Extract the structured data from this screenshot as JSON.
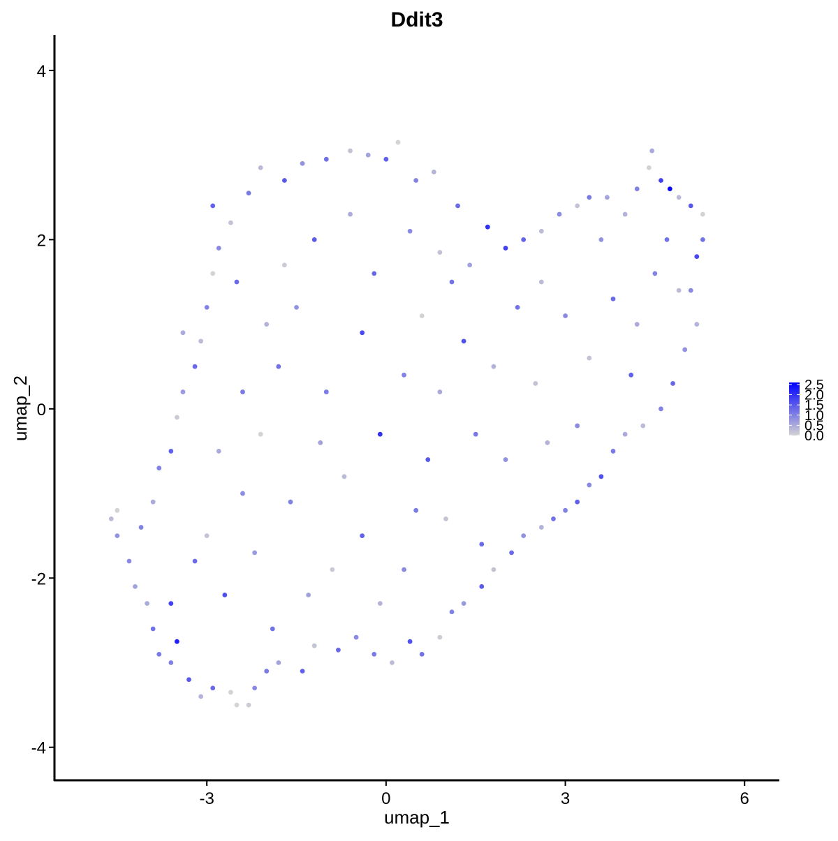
{
  "chart_data": {
    "type": "scatter",
    "title": "Ddit3",
    "x_label": "umap_1",
    "y_label": "umap_2",
    "xlim": [
      -5.55,
      6.57
    ],
    "ylim": [
      -4.39,
      4.42
    ],
    "xticks": [
      -3,
      0,
      3,
      6
    ],
    "yticks": [
      -4,
      -2,
      0,
      2,
      4
    ],
    "low_color": "#d3d3d3",
    "high_color": "#0000ff",
    "color_lim": [
      0,
      2.6
    ],
    "color_ticks": [
      {
        "value": 0,
        "label": "0.0"
      },
      0.5,
      {
        "value": 1,
        "label": "1.0"
      },
      1.5,
      {
        "value": 2,
        "label": "2.0"
      },
      2.5
    ],
    "x": [
      -4.6,
      -4.5,
      -4.5,
      -4.3,
      -4.1,
      -4.2,
      -4.0,
      -3.9,
      -3.8,
      -3.6,
      -3.5,
      -3.3,
      -3.1,
      -2.9,
      -2.6,
      -2.5,
      -2.3,
      -2.2,
      -2.0,
      -1.8,
      -1.4,
      -1.2,
      -0.8,
      -0.5,
      -0.2,
      0.1,
      0.4,
      0.6,
      0.9,
      1.1,
      1.3,
      1.6,
      1.8,
      2.1,
      2.3,
      2.6,
      2.8,
      3.0,
      3.2,
      3.4,
      3.6,
      3.8,
      4.0,
      4.3,
      4.6,
      4.8,
      5.0,
      5.2,
      5.1,
      5.2,
      5.3,
      5.3,
      5.1,
      4.9,
      4.75,
      4.6,
      4.45,
      4.4,
      4.2,
      4.0,
      3.7,
      3.4,
      3.2,
      2.9,
      2.6,
      2.3,
      2.0,
      1.7,
      1.4,
      1.1,
      0.9,
      1.2,
      0.8,
      0.5,
      0.2,
      0,
      -0.3,
      -0.6,
      -1.0,
      -1.4,
      -1.7,
      -2.1,
      -2.3,
      -2.6,
      -2.8,
      -2.9,
      -3.0,
      -3.1,
      -3.2,
      -3.4,
      -3.5,
      -3.6,
      -3.8,
      -3.9,
      -3.0,
      -2.7,
      -2.4,
      -2.1,
      -1.8,
      -1.5,
      -1.2,
      -2.5,
      -2.0,
      -1.0,
      -0.7,
      -0.4,
      -1.3,
      -1.9,
      -0.1,
      0.3,
      0.6,
      -0.2,
      -0.6,
      0.4,
      0.7,
      1.0,
      0.3,
      -0.9,
      1.5,
      1.8,
      2.2,
      2.6,
      3.0,
      3.4,
      3.8,
      4.2,
      4.5,
      4.1,
      2.5,
      2.0,
      2.7,
      3.2,
      1.3,
      -2.8,
      -3.2,
      -3.6,
      -2.2,
      -1.6,
      -1.1,
      -2.4,
      -1.7,
      -0.4,
      0.9,
      1.6,
      -0.1,
      0.5,
      -3.4,
      -2.9,
      4.7,
      4.9,
      3.6
    ],
    "y": [
      -1.3,
      -1.2,
      -1.5,
      -1.8,
      -1.4,
      -2.1,
      -2.3,
      -2.6,
      -2.9,
      -3.0,
      -2.75,
      -3.2,
      -3.4,
      -3.3,
      -3.35,
      -3.5,
      -3.5,
      -3.3,
      -3.1,
      -3.0,
      -3.1,
      -2.8,
      -2.85,
      -2.7,
      -2.9,
      -3.0,
      -2.75,
      -2.9,
      -2.7,
      -2.4,
      -2.3,
      -2.1,
      -1.9,
      -1.7,
      -1.5,
      -1.4,
      -1.3,
      -1.2,
      -1.1,
      -0.9,
      -0.8,
      -0.5,
      -0.3,
      -0.2,
      0.0,
      0.3,
      0.7,
      1.0,
      1.4,
      1.8,
      2.0,
      2.3,
      2.4,
      2.5,
      2.6,
      2.7,
      3.05,
      2.85,
      2.6,
      2.3,
      2.5,
      2.5,
      2.4,
      2.3,
      2.1,
      2.0,
      1.9,
      2.15,
      1.7,
      1.5,
      1.85,
      2.4,
      2.8,
      2.7,
      3.15,
      2.95,
      3.0,
      3.05,
      2.95,
      2.9,
      2.7,
      2.85,
      2.55,
      2.2,
      1.9,
      1.6,
      1.2,
      0.8,
      0.5,
      0.2,
      -0.1,
      -0.5,
      -0.7,
      -1.1,
      -1.5,
      -2.2,
      -1.0,
      -0.3,
      0.5,
      1.2,
      2.0,
      1.5,
      1.0,
      0.2,
      -0.8,
      -1.5,
      -2.2,
      -2.6,
      -0.3,
      0.4,
      1.1,
      1.6,
      2.3,
      2.1,
      -0.6,
      -1.3,
      -1.9,
      -1.9,
      -0.3,
      0.5,
      1.2,
      1.5,
      1.1,
      0.6,
      1.3,
      1.0,
      1.6,
      0.4,
      0.3,
      -0.6,
      -0.4,
      -0.2,
      0.8,
      -0.5,
      -1.8,
      -2.3,
      -1.7,
      -1.1,
      -0.4,
      0.2,
      1.7,
      0.9,
      0.2,
      -1.6,
      -2.3,
      -1.2,
      0.9,
      2.4,
      2.0,
      1.4,
      2.0
    ],
    "expression": [
      0.3,
      0,
      0.8,
      0.9,
      1.0,
      0.6,
      0.5,
      1.2,
      1.1,
      1.0,
      2.2,
      1.5,
      0.4,
      1.3,
      0,
      0,
      0.1,
      0.9,
      1.1,
      0.6,
      1.4,
      0.2,
      1.3,
      0.9,
      1.1,
      0.3,
      1.6,
      1.2,
      0.1,
      1.0,
      0.7,
      1.5,
      0.2,
      1.3,
      0.8,
      0.4,
      1.2,
      1.0,
      1.4,
      0.9,
      1.6,
      1.1,
      0.5,
      0.3,
      1.0,
      1.3,
      0.8,
      0.4,
      0.9,
      1.7,
      1.2,
      0,
      1.5,
      0.3,
      2.5,
      1.8,
      0.5,
      0,
      1.0,
      0.4,
      0.6,
      1.1,
      0.2,
      0.9,
      0.3,
      1.4,
      1.8,
      2.0,
      0.6,
      1.2,
      0.2,
      1.3,
      0.4,
      1.0,
      0,
      1.4,
      0.6,
      0.2,
      1.2,
      0.8,
      1.5,
      0.3,
      1.1,
      0.2,
      0.9,
      0,
      1.0,
      0.3,
      1.3,
      0.7,
      0.1,
      1.4,
      1.0,
      0.5,
      0.2,
      1.6,
      0.9,
      0,
      1.2,
      0.8,
      1.5,
      1.3,
      0.4,
      1.1,
      0.3,
      1.4,
      0.6,
      1.2,
      2.0,
      1.0,
      0,
      1.3,
      0.5,
      0.9,
      1.5,
      0.2,
      0.9,
      0.1,
      1.1,
      0.4,
      1.2,
      0.3,
      0.9,
      0.2,
      1.3,
      0.5,
      1.0,
      1.4,
      0.2,
      0.8,
      0.4,
      0.9,
      1.6,
      0.5,
      1.3,
      1.8,
      0.7,
      1.0,
      0.6,
      1.1,
      0.1,
      1.7,
      0.5,
      1.3,
      0.4,
      1.1,
      0.5,
      1.4,
      1.2,
      0.3,
      0.8
    ]
  }
}
